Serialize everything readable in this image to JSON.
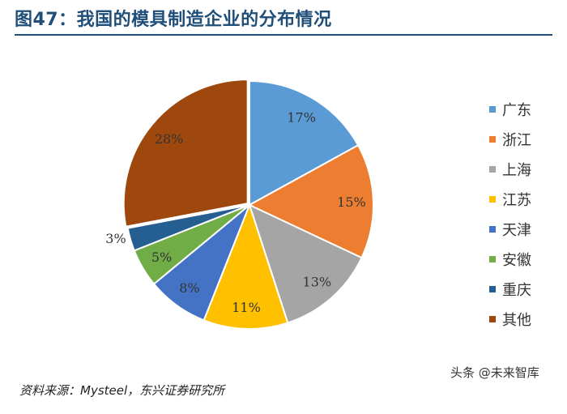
{
  "title": "图47：我国的模具制造企业的分布情况",
  "source": "资料来源：Mysteel，东兴证券研究所",
  "watermark": "头条 @未来智库",
  "chart_data": {
    "type": "pie",
    "title": "",
    "start": "top, clockwise",
    "legend_position": "right",
    "slices": [
      {
        "name": "广东",
        "value": 17,
        "label": "17%",
        "color": "#5b9bd5"
      },
      {
        "name": "浙江",
        "value": 15,
        "label": "15%",
        "color": "#ed7d31"
      },
      {
        "name": "上海",
        "value": 13,
        "label": "13%",
        "color": "#a5a5a5"
      },
      {
        "name": "江苏",
        "value": 11,
        "label": "11%",
        "color": "#ffc000"
      },
      {
        "name": "天津",
        "value": 8,
        "label": "8%",
        "color": "#4472c4"
      },
      {
        "name": "安徽",
        "value": 5,
        "label": "5%",
        "color": "#70ad47"
      },
      {
        "name": "重庆",
        "value": 3,
        "label": "3%",
        "color": "#255e91"
      },
      {
        "name": "其他",
        "value": 28,
        "label": "28%",
        "color": "#9e480e"
      }
    ]
  }
}
